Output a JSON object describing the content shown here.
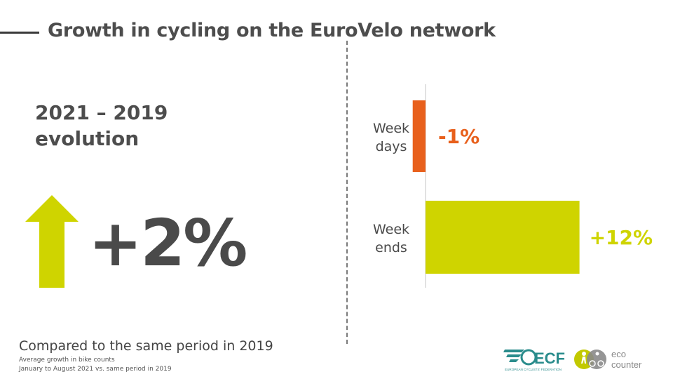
{
  "title": "Growth in cycling on the EuroVelo network",
  "evolution_label": [
    "2021 – 2019",
    "evolution"
  ],
  "overall_value": "+2%",
  "footnote": {
    "headline": "Compared to the same period in 2019",
    "line1": "Average growth in bike counts",
    "line2": "January to August 2021 vs. same period in 2019"
  },
  "logos": {
    "ecf": "ECF",
    "ecf_sub": "EUROPEAN CYCLISTS' FEDERATION",
    "eco": [
      "eco",
      "counter"
    ]
  },
  "colors": {
    "negative": "#e8601c",
    "positive": "#cfd400",
    "text": "#4a4a4a",
    "ecf": "#2a8c8c"
  },
  "chart_data": {
    "type": "bar",
    "orientation": "horizontal",
    "categories": [
      [
        "Week",
        "days"
      ],
      [
        "Week",
        "ends"
      ]
    ],
    "values": [
      -1,
      12
    ],
    "labels": [
      "-1%",
      "+12%"
    ],
    "colors": [
      "#e8601c",
      "#cfd400"
    ],
    "xlim": [
      -1.5,
      12
    ],
    "grid": false
  }
}
